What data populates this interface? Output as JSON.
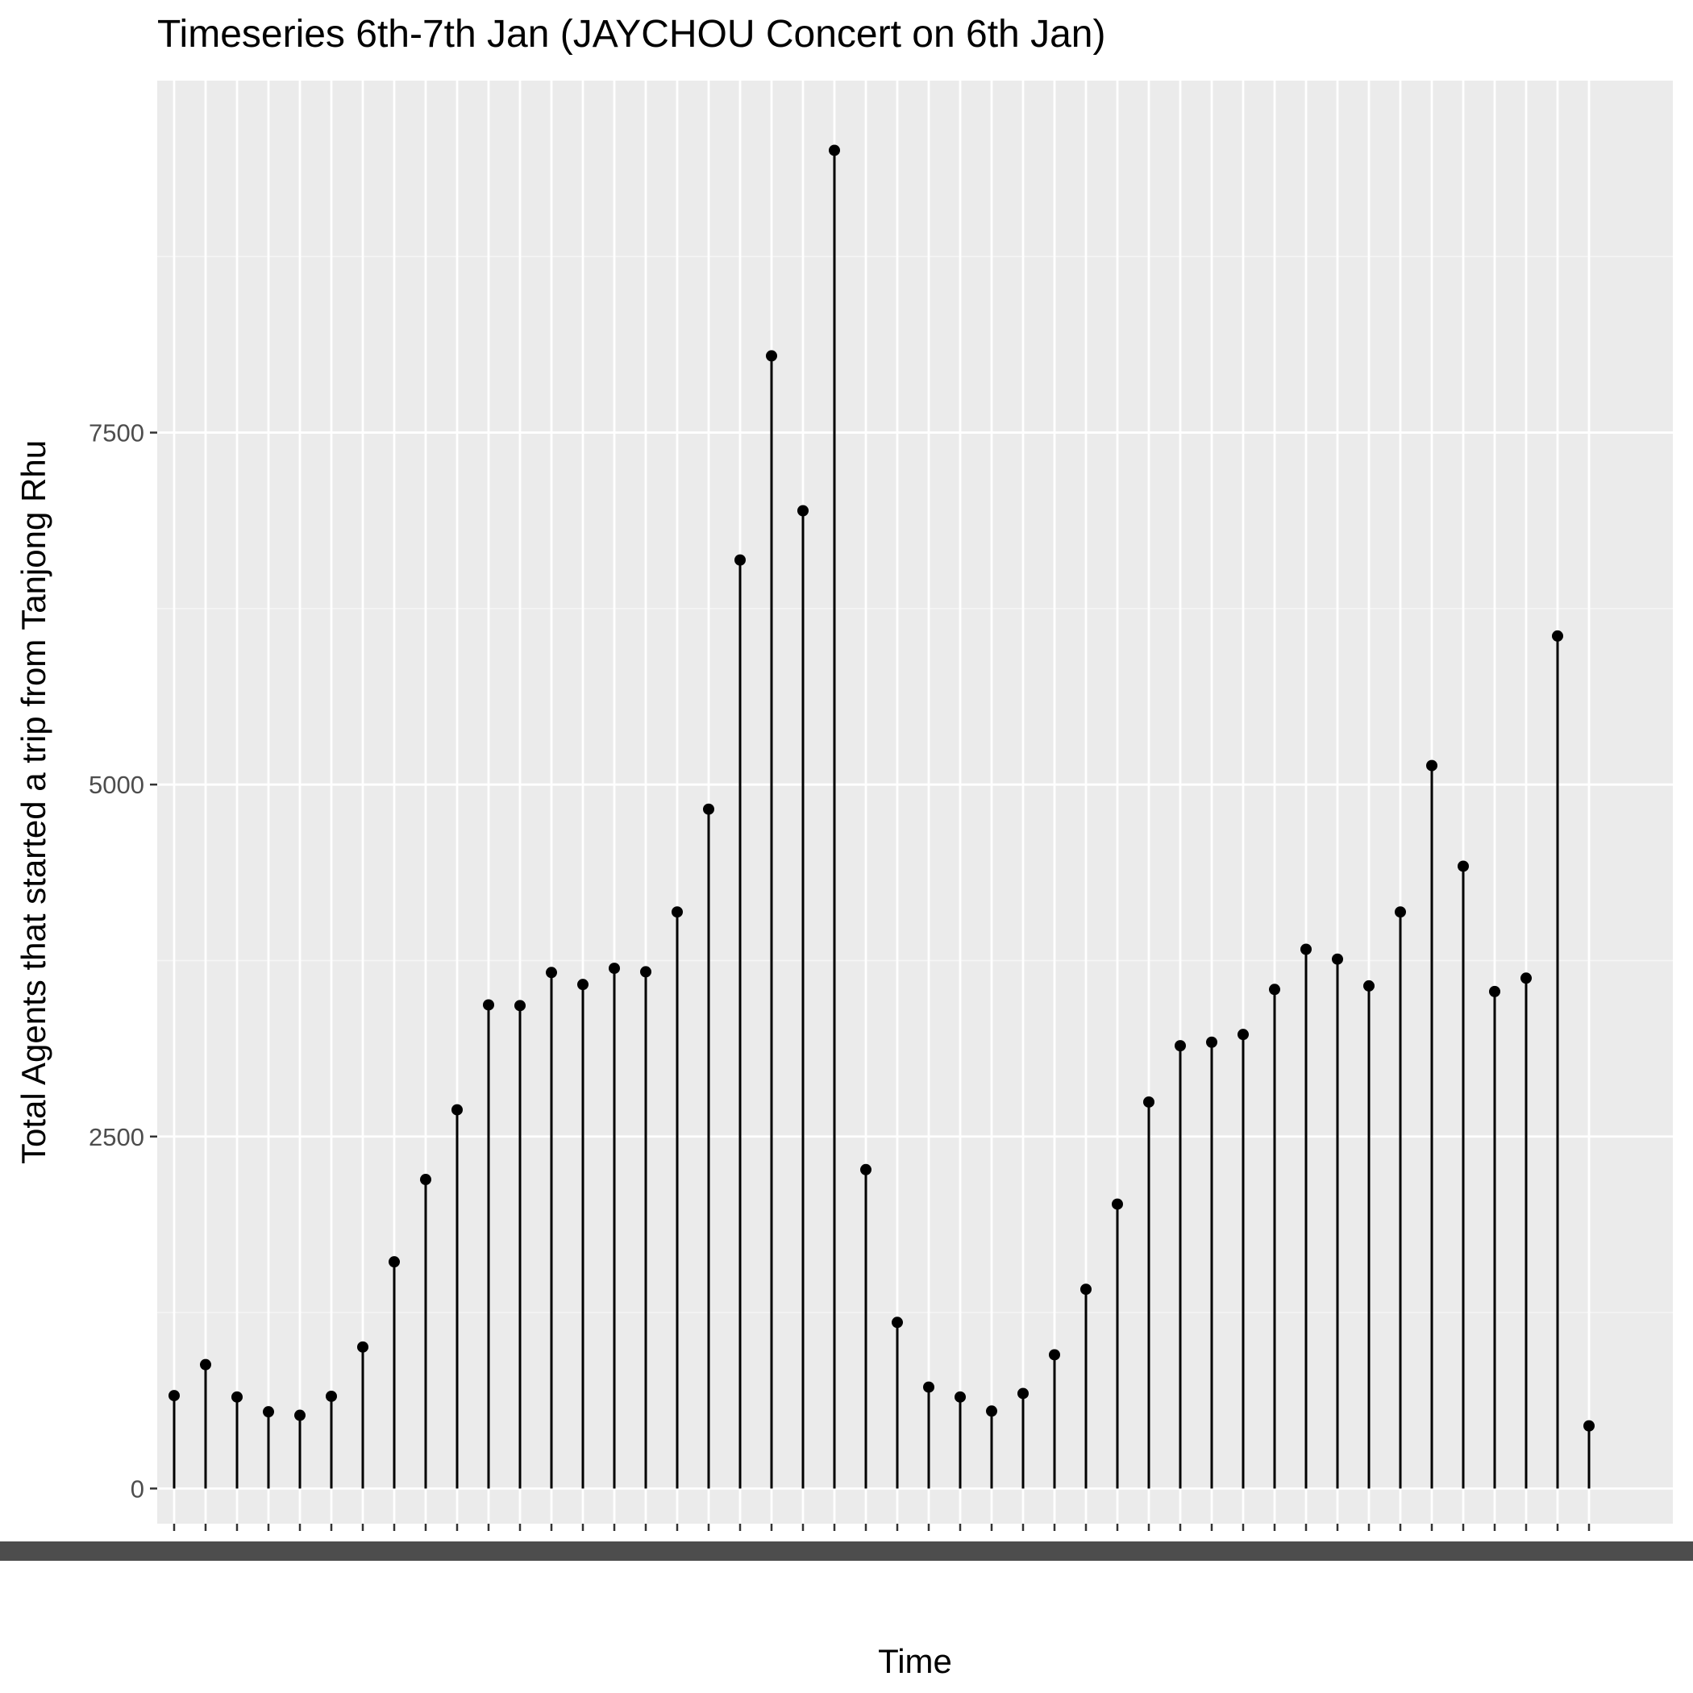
{
  "colors": {
    "panel_background": "#ebebeb",
    "grid_major": "#ffffff",
    "grid_minor": "#f5f5f5",
    "mark": "#000000",
    "axis_text": "#4d4d4d"
  },
  "chart_data": {
    "type": "lollipop",
    "title": "Timeseries 6th-7th Jan (JAYCHOU Concert on 6th Jan)",
    "xlabel": "Time",
    "ylabel": "Total Agents that started a trip from Tanjong Rhu",
    "ylim": [
      -250,
      10000
    ],
    "yticks": [
      0,
      2500,
      5000,
      7500
    ],
    "grid": true,
    "legend": "none",
    "x_tick_labels_legible": false,
    "values": [
      660,
      880,
      650,
      545,
      520,
      655,
      1005,
      1610,
      2195,
      2690,
      3435,
      3430,
      3665,
      3580,
      3695,
      3670,
      4095,
      4825,
      6595,
      8045,
      6945,
      9505,
      2265,
      1180,
      720,
      650,
      550,
      675,
      950,
      1415,
      2020,
      2745,
      3145,
      3170,
      3225,
      3545,
      3830,
      3760,
      3570,
      4095,
      5135,
      4420,
      3530,
      3625,
      6055,
      445
    ]
  }
}
